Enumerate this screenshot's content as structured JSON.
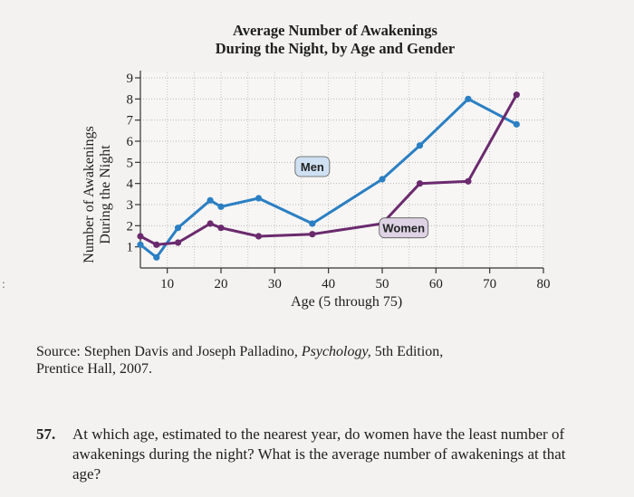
{
  "chart_data": {
    "type": "line",
    "title": "Average Number of Awakenings During the Night, by Age and Gender",
    "title_lines": [
      "Average Number of Awakenings",
      "During the Night, by Age and Gender"
    ],
    "ylabel_lines": [
      "Number of Awakenings",
      "During the Night"
    ],
    "xlabel": "Age (5 through 75)",
    "xlim": [
      5,
      80
    ],
    "ylim": [
      0,
      9
    ],
    "xticks": [
      10,
      20,
      30,
      40,
      50,
      60,
      70,
      80
    ],
    "yticks": [
      1,
      2,
      3,
      4,
      5,
      6,
      7,
      8,
      9
    ],
    "grid": true,
    "series": [
      {
        "name": "Men",
        "color": "#2b7fc3",
        "points": [
          [
            5,
            1.1
          ],
          [
            8,
            0.5
          ],
          [
            12,
            1.9
          ],
          [
            18,
            3.2
          ],
          [
            20,
            2.9
          ],
          [
            27,
            3.3
          ],
          [
            37,
            2.1
          ],
          [
            50,
            4.2
          ],
          [
            57,
            5.8
          ],
          [
            66,
            8.0
          ],
          [
            75,
            6.8
          ]
        ]
      },
      {
        "name": "Women",
        "color": "#6b2a6e",
        "points": [
          [
            5,
            1.5
          ],
          [
            8,
            1.1
          ],
          [
            12,
            1.2
          ],
          [
            18,
            2.1
          ],
          [
            20,
            1.9
          ],
          [
            27,
            1.5
          ],
          [
            37,
            1.6
          ],
          [
            50,
            2.1
          ],
          [
            57,
            4.0
          ],
          [
            66,
            4.1
          ],
          [
            75,
            8.2
          ]
        ]
      }
    ],
    "annotations": [
      {
        "text": "Men",
        "x": 37,
        "y": 4.8
      },
      {
        "text": "Women",
        "x": 54,
        "y": 1.9
      }
    ]
  },
  "source": {
    "prefix": "Source: Stephen Davis and Joseph Palladino, ",
    "book": "Psychology,",
    "suffix": " 5th Edition,",
    "line2": "Prentice Hall, 2007."
  },
  "question": {
    "number": "57.",
    "text": "At which age, estimated to the nearest year, do women have the least number of awakenings during the night? What is the average number of awakenings at that age?"
  },
  "edge_mark": ":"
}
